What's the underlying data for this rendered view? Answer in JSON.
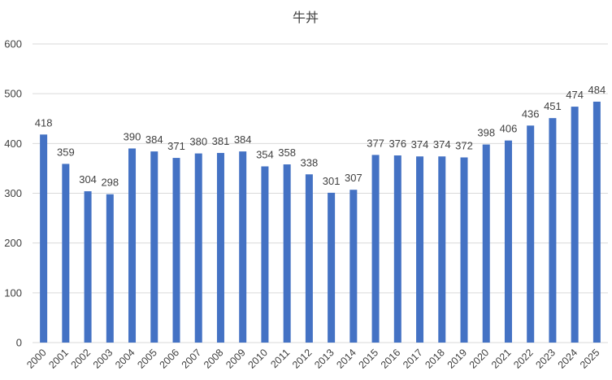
{
  "chart_data": {
    "type": "bar",
    "title": "牛丼",
    "xlabel": "",
    "ylabel": "",
    "ylim": [
      0,
      600
    ],
    "yticks": [
      0,
      100,
      200,
      300,
      400,
      500,
      600
    ],
    "grid": true,
    "categories": [
      "2000",
      "2001",
      "2002",
      "2003",
      "2004",
      "2005",
      "2006",
      "2007",
      "2008",
      "2009",
      "2010",
      "2011",
      "2012",
      "2013",
      "2014",
      "2015",
      "2016",
      "2017",
      "2018",
      "2019",
      "2020",
      "2021",
      "2022",
      "2023",
      "2024",
      "2025"
    ],
    "values": [
      418,
      359,
      304,
      298,
      390,
      384,
      371,
      380,
      381,
      384,
      354,
      358,
      338,
      301,
      307,
      377,
      376,
      374,
      374,
      372,
      398,
      406,
      436,
      451,
      474,
      484
    ],
    "bar_color": "#4472c4",
    "data_labels": true
  }
}
